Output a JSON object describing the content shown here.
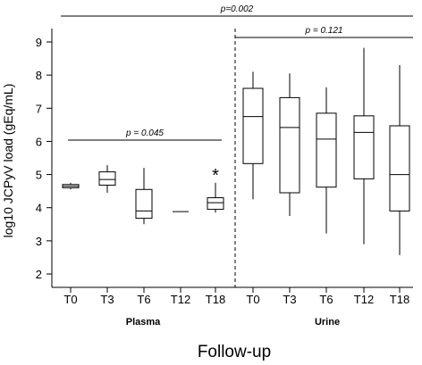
{
  "chart_data": {
    "type": "box",
    "xlabel": "Follow-up",
    "ylabel": "log10 JCPyV load (gEq/mL)",
    "ylim": [
      2,
      9
    ],
    "yticks": [
      2,
      3,
      4,
      5,
      6,
      7,
      8,
      9
    ],
    "groups": [
      {
        "name": "Plasma",
        "categories": [
          "T0",
          "T3",
          "T6",
          "T12",
          "T18"
        ],
        "boxes": [
          {
            "min": 4.55,
            "q1": 4.6,
            "median": 4.65,
            "q3": 4.7,
            "max": 4.75
          },
          {
            "min": 4.45,
            "q1": 4.68,
            "median": 4.85,
            "q3": 5.08,
            "max": 5.28
          },
          {
            "min": 3.5,
            "q1": 3.68,
            "median": 3.9,
            "q3": 4.55,
            "max": 5.2
          },
          {
            "min": 3.88,
            "q1": 3.88,
            "median": 3.88,
            "q3": 3.88,
            "max": 3.88
          },
          {
            "min": 3.85,
            "q1": 3.95,
            "median": 4.15,
            "q3": 4.3,
            "max": 4.75,
            "outlier_marker": "*"
          }
        ]
      },
      {
        "name": "Urine",
        "categories": [
          "T0",
          "T3",
          "T6",
          "T12",
          "T18"
        ],
        "boxes": [
          {
            "min": 4.25,
            "q1": 5.33,
            "median": 6.75,
            "q3": 7.6,
            "max": 8.1
          },
          {
            "min": 3.75,
            "q1": 4.45,
            "median": 6.42,
            "q3": 7.32,
            "max": 8.05
          },
          {
            "min": 3.22,
            "q1": 4.62,
            "median": 6.07,
            "q3": 6.85,
            "max": 7.63
          },
          {
            "min": 2.9,
            "q1": 4.87,
            "median": 6.27,
            "q3": 6.77,
            "max": 8.82
          },
          {
            "min": 2.57,
            "q1": 3.9,
            "median": 5.0,
            "q3": 6.47,
            "max": 8.3
          }
        ]
      }
    ],
    "annotations": [
      {
        "text": "p=0.002",
        "spans": "all"
      },
      {
        "text": "p = 0.121",
        "spans": "Urine"
      },
      {
        "text": "p = 0.045",
        "spans": "Plasma"
      }
    ]
  }
}
